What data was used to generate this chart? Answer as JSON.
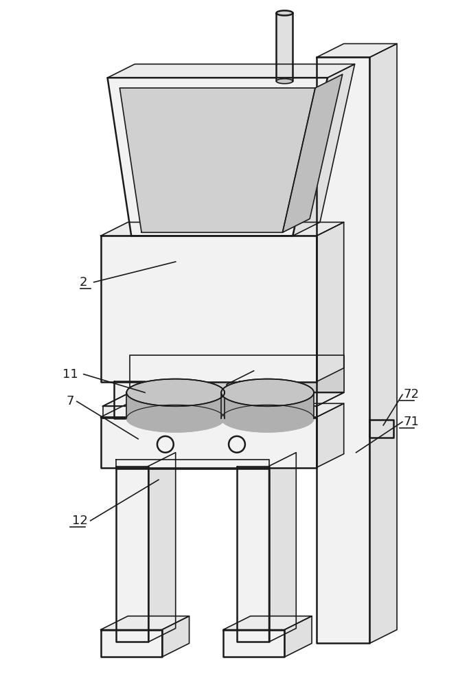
{
  "bg_color": "#ffffff",
  "lc": "#1a1a1a",
  "lw_thick": 1.8,
  "lw_thin": 1.2,
  "fill_front": "#f2f2f2",
  "fill_side": "#e0e0e0",
  "fill_top": "#ebebeb",
  "fill_dark": "#d0d0d0",
  "fill_roller": "#c8c8c8",
  "label_fs": 13,
  "underline_labels": [
    "2",
    "12",
    "71",
    "72"
  ]
}
